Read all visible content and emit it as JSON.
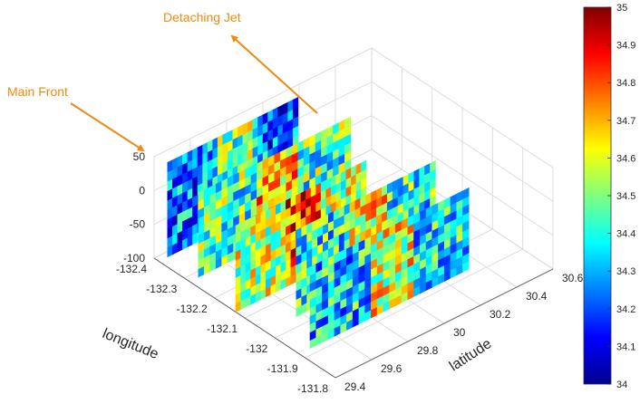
{
  "chart_data": {
    "type": "3d-slice",
    "x_axis": {
      "label": "longitude",
      "range": [
        -132.4,
        -131.8
      ],
      "ticks": [
        "-132.4",
        "-132.3",
        "-132.2",
        "-132.1",
        "-132",
        "-131.9",
        "-131.8"
      ]
    },
    "y_axis": {
      "label": "latitude",
      "range": [
        29.4,
        30.6
      ],
      "ticks": [
        "29.4",
        "29.6",
        "29.8",
        "30",
        "30.2",
        "30.4",
        "30.6"
      ]
    },
    "z_axis": {
      "label": "",
      "range": [
        -100,
        50
      ],
      "ticks": [
        "50",
        "0",
        "-50",
        "-100"
      ]
    },
    "colorbar": {
      "range": [
        34,
        35
      ],
      "colormap": "jet",
      "ticks": [
        "35",
        "34.9",
        "34.8",
        "34.7",
        "34.6",
        "34.5",
        "34.4",
        "34.3",
        "34.2",
        "34.1",
        "34"
      ]
    },
    "annotations": [
      {
        "text": "Detaching Jet",
        "color": "#ee8a10"
      },
      {
        "text": "Main Front",
        "color": "#ee8a10"
      }
    ],
    "grid": true,
    "slices": [
      {
        "name": "",
        "mean": 34.25
      },
      {
        "name": "",
        "mean": 34.45
      },
      {
        "name": "",
        "mean": 34.55
      },
      {
        "name": "",
        "mean": 34.4
      },
      {
        "name": "",
        "mean": 34.35
      }
    ]
  }
}
